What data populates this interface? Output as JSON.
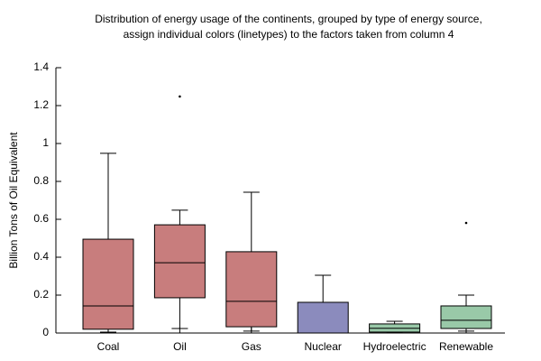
{
  "chart_data": {
    "type": "box",
    "title": [
      "Distribution of energy usage of the continents, grouped by type of energy source,",
      "assign individual colors (linetypes) to the factors taken from column 4"
    ],
    "ylabel": "Billion Tons of Oil Equivalent",
    "categories": [
      "Coal",
      "Oil",
      "Gas",
      "Nuclear",
      "Hydroelectric",
      "Renewable"
    ],
    "colors": [
      "#c87d7d",
      "#c87d7d",
      "#c87d7d",
      "#8b8bbd",
      "#99c9a8",
      "#99c9a8"
    ],
    "min": [
      0.005,
      0.024,
      0.01,
      0,
      0.005,
      0.01
    ],
    "q1": [
      0.02,
      0.186,
      0.033,
      0,
      0.005,
      0.024
    ],
    "median": [
      0.143,
      0.371,
      0.167,
      0,
      0.025,
      0.067
    ],
    "q3": [
      0.495,
      0.571,
      0.429,
      0.162,
      0.048,
      0.143
    ],
    "max": [
      0.948,
      0.648,
      0.743,
      0.305,
      0.062,
      0.2
    ],
    "outliers": [
      [],
      [
        1.248
      ],
      [],
      [],
      [],
      [
        0.581
      ]
    ],
    "ylim": [
      0,
      1.4
    ],
    "yticks": [
      0,
      0.2,
      0.4,
      0.6,
      0.8,
      1,
      1.2,
      1.4
    ]
  }
}
